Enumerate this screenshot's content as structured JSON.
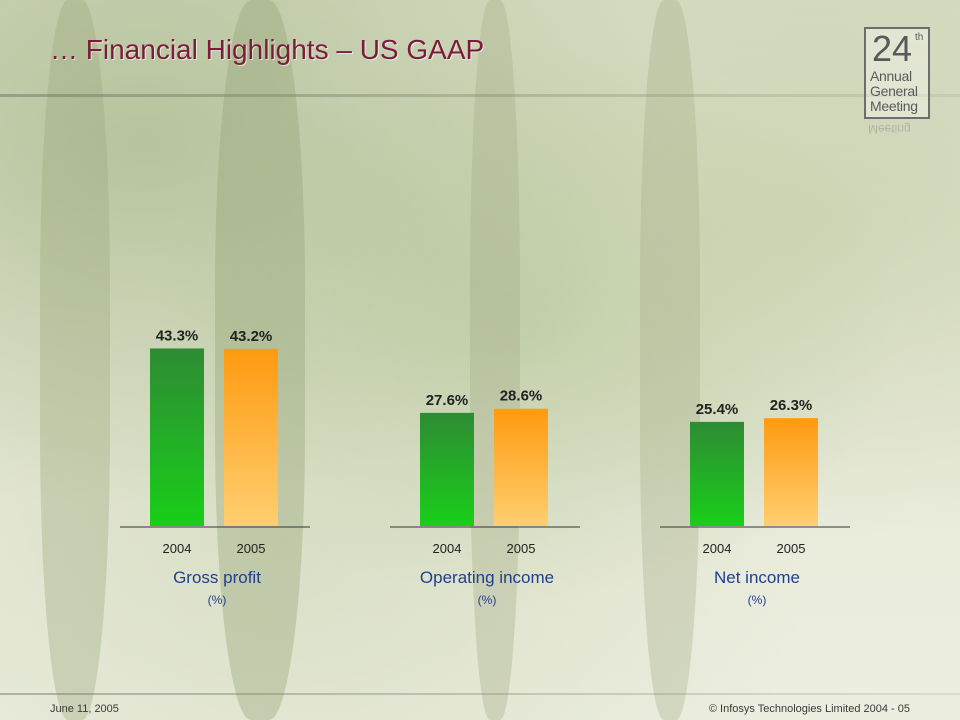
{
  "title": "… Financial Highlights – US GAAP",
  "logo": {
    "number": "24",
    "superscript": "th",
    "line1": "Annual",
    "line2": "General",
    "line3": "Meeting"
  },
  "footer": {
    "date": "June 11, 2005",
    "copyright": "© Infosys Technologies Limited 2004 - 05"
  },
  "colors": {
    "title": "#7a1c3a",
    "label": "#1f3f8f",
    "bar_2004_top": "#2e8b34",
    "bar_2004_bottom": "#19cf19",
    "bar_2005_top": "#ff9a10",
    "bar_2005_bottom": "#ffcf70"
  },
  "chart_data": [
    {
      "type": "bar",
      "title": "Gross profit",
      "unit": "(%)",
      "categories": [
        "2004",
        "2005"
      ],
      "values": [
        43.3,
        43.2
      ],
      "value_labels": [
        "43.3%",
        "43.2%"
      ]
    },
    {
      "type": "bar",
      "title": "Operating income",
      "unit": "(%)",
      "categories": [
        "2004",
        "2005"
      ],
      "values": [
        27.6,
        28.6
      ],
      "value_labels": [
        "27.6%",
        "28.6%"
      ]
    },
    {
      "type": "bar",
      "title": "Net income",
      "unit": "(%)",
      "categories": [
        "2004",
        "2005"
      ],
      "values": [
        25.4,
        26.3
      ],
      "value_labels": [
        "25.4%",
        "26.3%"
      ]
    }
  ]
}
